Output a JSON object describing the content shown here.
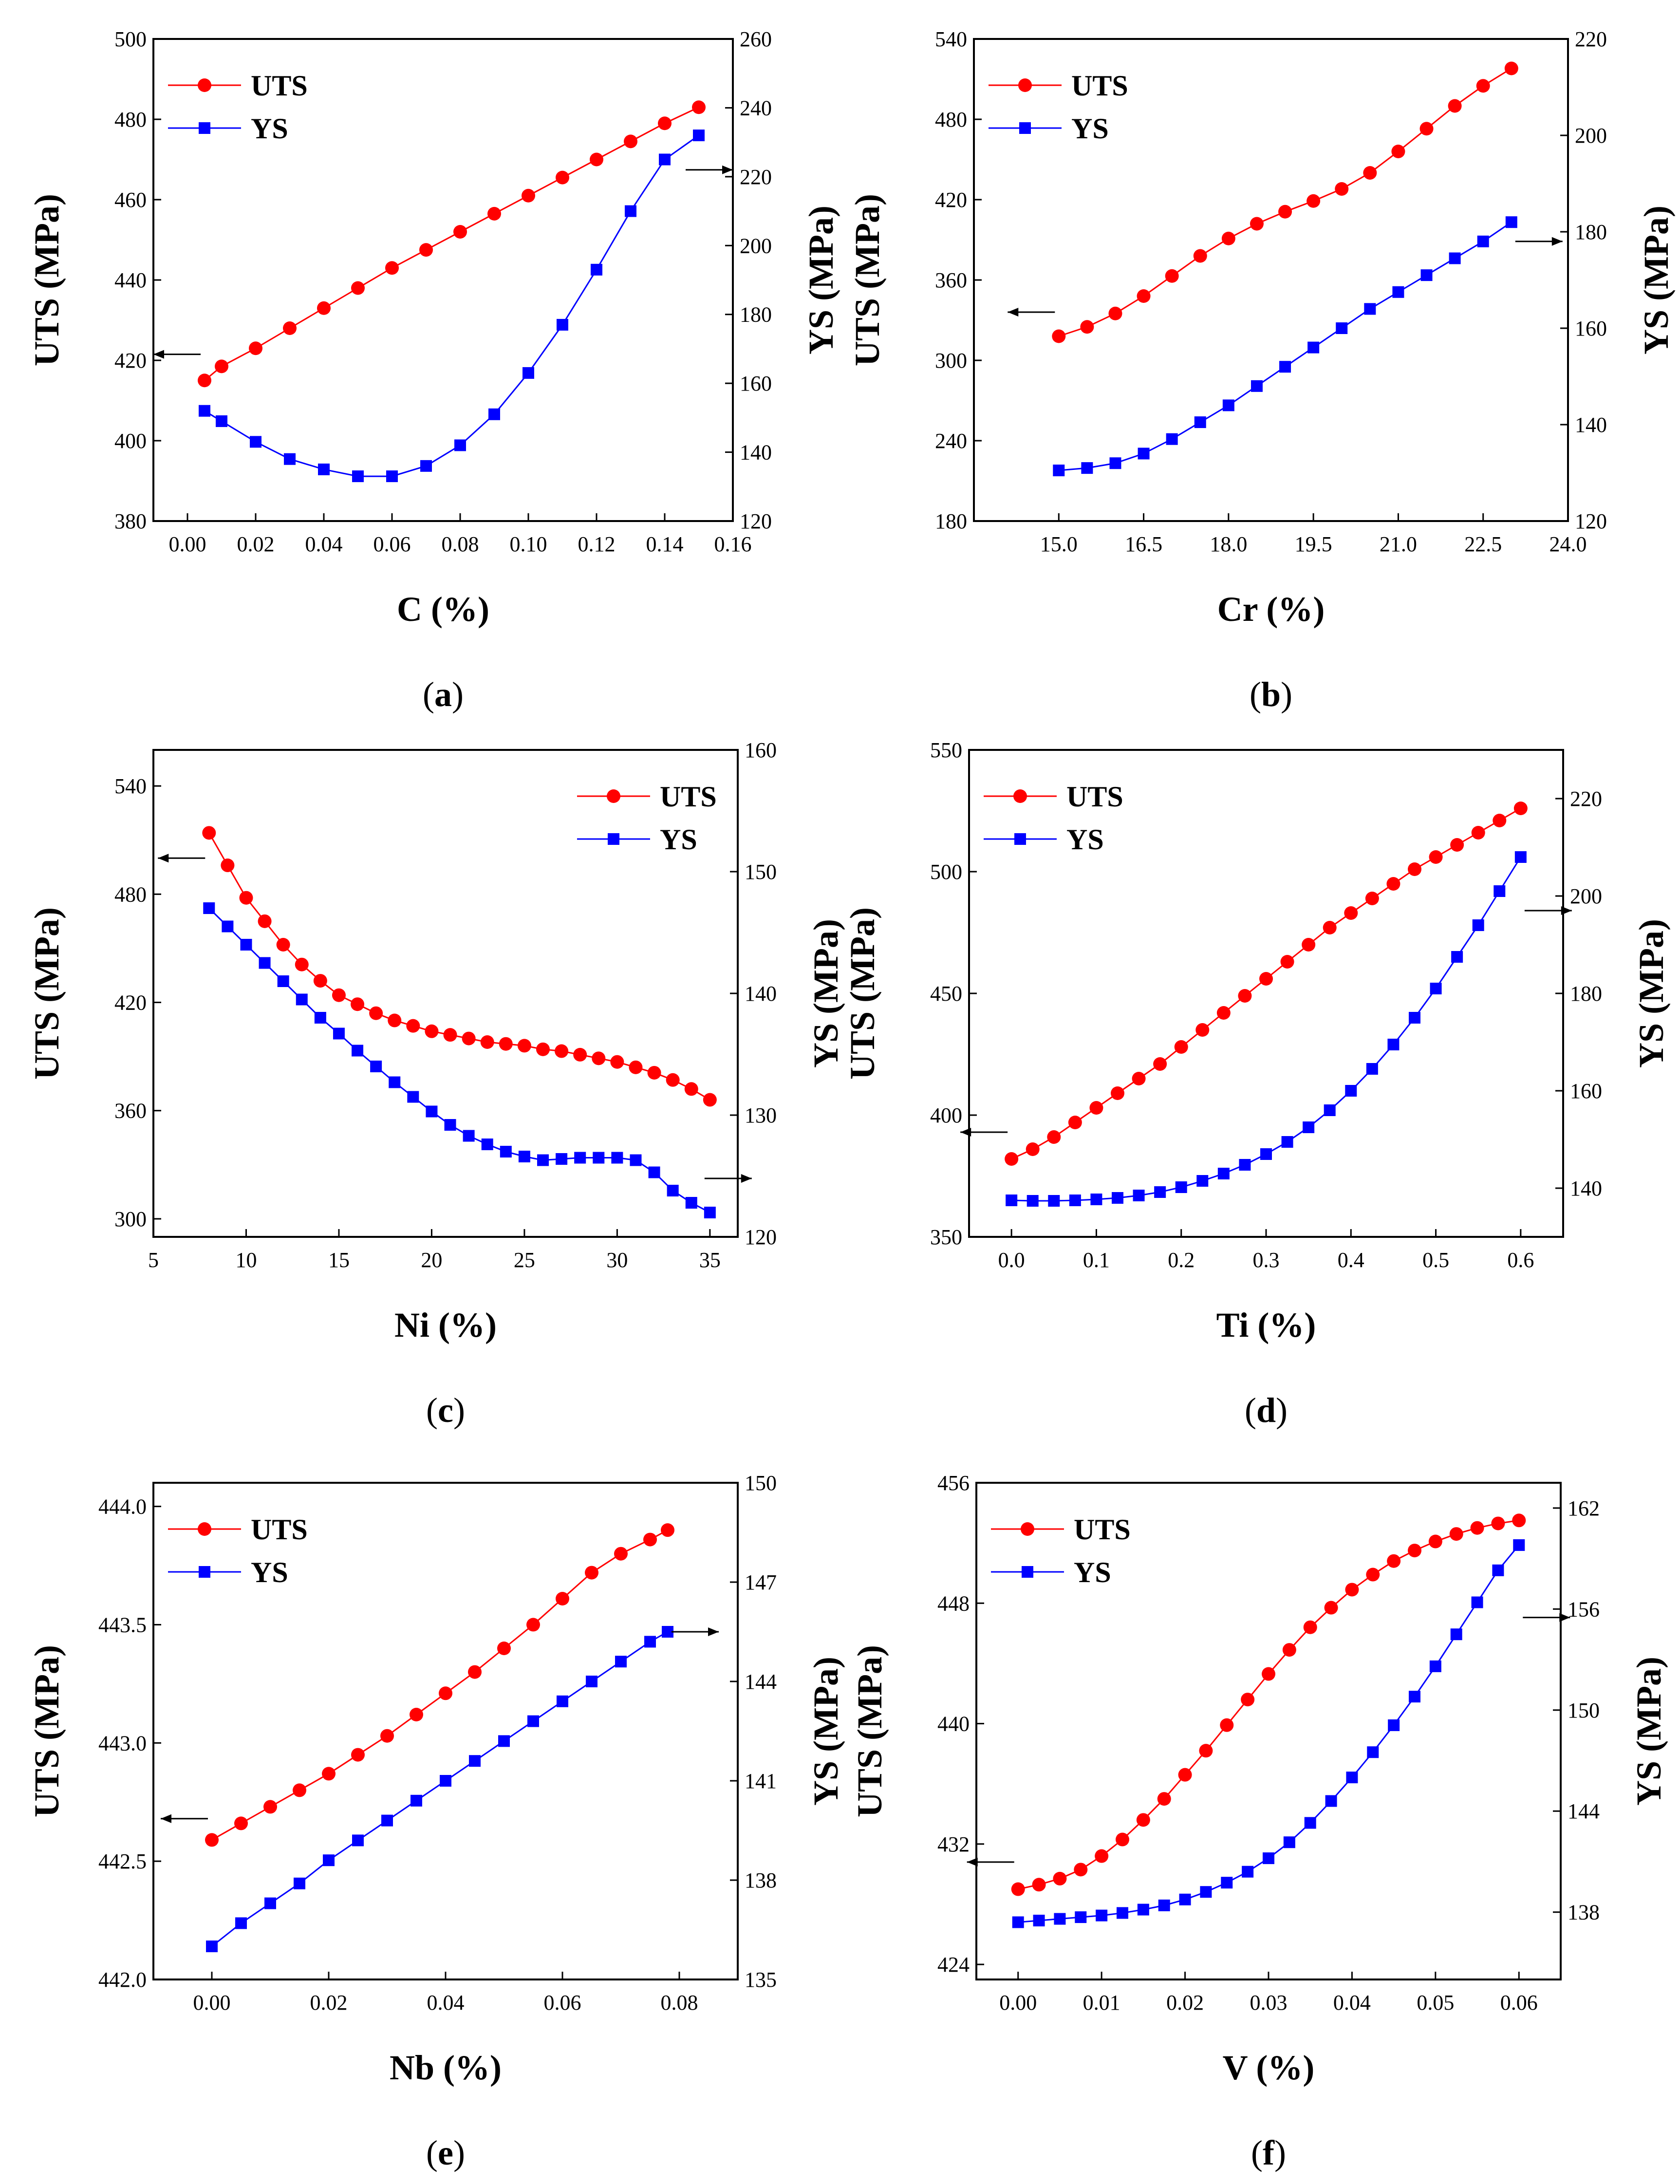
{
  "chart_data": [
    {
      "type": "line",
      "caption": "(a)",
      "caption_letter": "a",
      "xlabel": "C (%)",
      "ylabel_left": "UTS (MPa)",
      "ylabel_right": "YS (MPa)",
      "xlim": [
        -0.01,
        0.16
      ],
      "ylim_left": [
        380,
        500
      ],
      "ylim_right": [
        120,
        260
      ],
      "x_ticks": [
        "0.00",
        "0.02",
        "0.04",
        "0.06",
        "0.08",
        "0.10",
        "0.12",
        "0.14",
        "0.16"
      ],
      "y_left_ticks": [
        "380",
        "400",
        "420",
        "440",
        "460",
        "480",
        "500"
      ],
      "y_right_ticks": [
        "120",
        "140",
        "160",
        "180",
        "200",
        "220",
        "240",
        "260"
      ],
      "legend": [
        "UTS",
        "YS"
      ],
      "legend_position": "top-left",
      "arrows": [
        {
          "x": 0.005,
          "y": 421.5,
          "dir": "left",
          "axis": "left"
        },
        {
          "x": 0.145,
          "y": 222,
          "dir": "right",
          "axis": "right"
        }
      ],
      "series": [
        {
          "name": "UTS",
          "axis": "left",
          "marker": "circle",
          "color": "#ff0000",
          "x": [
            0.005,
            0.01,
            0.02,
            0.03,
            0.04,
            0.05,
            0.06,
            0.07,
            0.08,
            0.09,
            0.1,
            0.11,
            0.12,
            0.13,
            0.14,
            0.15
          ],
          "values": [
            415,
            418.5,
            423,
            428,
            433,
            438,
            443,
            447.5,
            452,
            456.5,
            461,
            465.5,
            470,
            474.5,
            479,
            483
          ]
        },
        {
          "name": "YS",
          "axis": "right",
          "marker": "square",
          "color": "#0000ff",
          "x": [
            0.005,
            0.01,
            0.02,
            0.03,
            0.04,
            0.05,
            0.06,
            0.07,
            0.08,
            0.09,
            0.1,
            0.11,
            0.12,
            0.13,
            0.14,
            0.15
          ],
          "values": [
            152,
            149,
            143,
            138,
            135,
            133,
            133,
            136,
            142,
            151,
            163,
            177,
            193,
            210,
            225,
            232
          ]
        }
      ]
    },
    {
      "type": "line",
      "caption": "(b)",
      "caption_letter": "b",
      "xlabel": "Cr (%)",
      "ylabel_left": "UTS (MPa)",
      "ylabel_right": "YS (MPa)",
      "xlim": [
        13.5,
        24.0
      ],
      "ylim_left": [
        180,
        540
      ],
      "ylim_right": [
        120,
        220
      ],
      "x_ticks": [
        "15.0",
        "16.5",
        "18.0",
        "19.5",
        "21.0",
        "22.5",
        "24.0"
      ],
      "y_left_ticks": [
        "180",
        "240",
        "300",
        "360",
        "420",
        "480",
        "540"
      ],
      "y_right_ticks": [
        "120",
        "140",
        "160",
        "180",
        "200",
        "220"
      ],
      "legend": [
        "UTS",
        "YS"
      ],
      "legend_position": "top-left",
      "arrows": [
        {
          "x": 15.0,
          "y": 336,
          "dir": "left",
          "axis": "left"
        },
        {
          "x": 23.0,
          "y": 178,
          "dir": "right",
          "axis": "right"
        }
      ],
      "series": [
        {
          "name": "UTS",
          "axis": "left",
          "marker": "circle",
          "color": "#ff0000",
          "x": [
            15.0,
            15.5,
            16.0,
            16.5,
            17.0,
            17.5,
            18.0,
            18.5,
            19.0,
            19.5,
            20.0,
            20.5,
            21.0,
            21.5,
            22.0,
            22.5,
            23.0
          ],
          "values": [
            318,
            325,
            335,
            348,
            363,
            378,
            391,
            402,
            411,
            419,
            428,
            440,
            456,
            473,
            490,
            505,
            518
          ]
        },
        {
          "name": "YS",
          "axis": "right",
          "marker": "square",
          "color": "#0000ff",
          "x": [
            15.0,
            15.5,
            16.0,
            16.5,
            17.0,
            17.5,
            18.0,
            18.5,
            19.0,
            19.5,
            20.0,
            20.5,
            21.0,
            21.5,
            22.0,
            22.5,
            23.0
          ],
          "values": [
            130.5,
            131,
            132,
            134,
            137,
            140.5,
            144,
            148,
            152,
            156,
            160,
            164,
            167.5,
            171,
            174.5,
            178,
            182
          ]
        }
      ]
    },
    {
      "type": "line",
      "caption": "(c)",
      "caption_letter": "c",
      "xlabel": "Ni (%)",
      "ylabel_left": "UTS (MPa)",
      "ylabel_right": "YS (MPa)",
      "xlim": [
        5,
        36.5
      ],
      "ylim_left": [
        290,
        560
      ],
      "ylim_right": [
        120,
        160
      ],
      "x_ticks": [
        "5",
        "10",
        "15",
        "20",
        "25",
        "30",
        "35"
      ],
      "y_left_ticks": [
        "300",
        "360",
        "420",
        "480",
        "540"
      ],
      "y_right_ticks": [
        "120",
        "130",
        "140",
        "150",
        "160"
      ],
      "legend": [
        "UTS",
        "YS"
      ],
      "legend_position": "top-right",
      "arrows": [
        {
          "x": 8,
          "y": 500,
          "dir": "left",
          "axis": "left"
        },
        {
          "x": 34.5,
          "y": 124.8,
          "dir": "right",
          "axis": "right"
        }
      ],
      "series": [
        {
          "name": "UTS",
          "axis": "left",
          "marker": "circle",
          "color": "#ff0000",
          "x": [
            8,
            9,
            10,
            11,
            12,
            13,
            14,
            15,
            16,
            17,
            18,
            19,
            20,
            21,
            22,
            23,
            24,
            25,
            26,
            27,
            28,
            29,
            30,
            31,
            32,
            33,
            34,
            35
          ],
          "values": [
            514,
            496,
            478,
            465,
            452,
            441,
            432,
            424,
            419,
            414,
            410,
            407,
            404,
            402,
            400,
            398,
            397,
            396,
            394,
            393,
            391,
            389,
            387,
            384,
            381,
            377,
            372,
            366
          ]
        },
        {
          "name": "YS",
          "axis": "right",
          "marker": "square",
          "color": "#0000ff",
          "x": [
            8,
            9,
            10,
            11,
            12,
            13,
            14,
            15,
            16,
            17,
            18,
            19,
            20,
            21,
            22,
            23,
            24,
            25,
            26,
            27,
            28,
            29,
            30,
            31,
            32,
            33,
            34,
            35
          ],
          "values": [
            147,
            145.5,
            144,
            142.5,
            141,
            139.5,
            138,
            136.7,
            135.3,
            134,
            132.7,
            131.5,
            130.3,
            129.2,
            128.3,
            127.6,
            127,
            126.6,
            126.3,
            126.4,
            126.5,
            126.5,
            126.5,
            126.3,
            125.3,
            123.8,
            122.8,
            122
          ]
        }
      ]
    },
    {
      "type": "line",
      "caption": "(d)",
      "caption_letter": "d",
      "xlabel": "Ti (%)",
      "ylabel_left": "UTS (MPa)",
      "ylabel_right": "YS (MPa)",
      "xlim": [
        -0.05,
        0.65
      ],
      "ylim_left": [
        350,
        550
      ],
      "ylim_right": [
        130,
        230
      ],
      "x_ticks": [
        "0.0",
        "0.1",
        "0.2",
        "0.3",
        "0.4",
        "0.5",
        "0.6"
      ],
      "y_left_ticks": [
        "350",
        "400",
        "450",
        "500",
        "550"
      ],
      "y_right_ticks": [
        "140",
        "160",
        "180",
        "200",
        "220"
      ],
      "legend": [
        "UTS",
        "YS"
      ],
      "legend_position": "top-left",
      "arrows": [
        {
          "x": 0.0,
          "y": 393,
          "dir": "left",
          "axis": "left"
        },
        {
          "x": 0.6,
          "y": 197,
          "dir": "right",
          "axis": "right"
        }
      ],
      "series": [
        {
          "name": "UTS",
          "axis": "left",
          "marker": "circle",
          "color": "#ff0000",
          "x": [
            0.0,
            0.025,
            0.05,
            0.075,
            0.1,
            0.125,
            0.15,
            0.175,
            0.2,
            0.225,
            0.25,
            0.275,
            0.3,
            0.325,
            0.35,
            0.375,
            0.4,
            0.425,
            0.45,
            0.475,
            0.5,
            0.525,
            0.55,
            0.575,
            0.6
          ],
          "values": [
            382,
            386,
            391,
            397,
            403,
            409,
            415,
            421,
            428,
            435,
            442,
            449,
            456,
            463,
            470,
            477,
            483,
            489,
            495,
            501,
            506,
            511,
            516,
            521,
            526
          ]
        },
        {
          "name": "YS",
          "axis": "right",
          "marker": "square",
          "color": "#0000ff",
          "x": [
            0.0,
            0.025,
            0.05,
            0.075,
            0.1,
            0.125,
            0.15,
            0.175,
            0.2,
            0.225,
            0.25,
            0.275,
            0.3,
            0.325,
            0.35,
            0.375,
            0.4,
            0.425,
            0.45,
            0.475,
            0.5,
            0.525,
            0.55,
            0.575,
            0.6
          ],
          "values": [
            137.5,
            137.4,
            137.4,
            137.5,
            137.7,
            138,
            138.5,
            139.2,
            140.2,
            141.5,
            143,
            144.8,
            147,
            149.5,
            152.5,
            156,
            160,
            164.5,
            169.5,
            175,
            181,
            187.5,
            194,
            201,
            208
          ]
        }
      ]
    },
    {
      "type": "line",
      "caption": "(e)",
      "caption_letter": "e",
      "xlabel": "Nb (%)",
      "ylabel_left": "UTS (MPa)",
      "ylabel_right": "YS (MPa)",
      "xlim": [
        -0.01,
        0.09
      ],
      "ylim_left": [
        442.0,
        444.1
      ],
      "ylim_right": [
        135,
        150
      ],
      "x_ticks": [
        "0.00",
        "0.02",
        "0.04",
        "0.06",
        "0.08"
      ],
      "y_left_ticks": [
        "442.0",
        "442.5",
        "443.0",
        "443.5",
        "444.0"
      ],
      "y_right_ticks": [
        "135",
        "138",
        "141",
        "144",
        "147",
        "150"
      ],
      "legend": [
        "UTS",
        "YS"
      ],
      "legend_position": "top-left",
      "arrows": [
        {
          "x": 0.0,
          "y": 442.68,
          "dir": "left",
          "axis": "left"
        },
        {
          "x": 0.078,
          "y": 145.5,
          "dir": "right",
          "axis": "right"
        }
      ],
      "series": [
        {
          "name": "UTS",
          "axis": "left",
          "marker": "circle",
          "color": "#ff0000",
          "x": [
            0.0,
            0.005,
            0.01,
            0.015,
            0.02,
            0.025,
            0.03,
            0.035,
            0.04,
            0.045,
            0.05,
            0.055,
            0.06,
            0.065,
            0.07,
            0.075,
            0.078
          ],
          "values": [
            442.59,
            442.66,
            442.73,
            442.8,
            442.87,
            442.95,
            443.03,
            443.12,
            443.21,
            443.3,
            443.4,
            443.5,
            443.61,
            443.72,
            443.8,
            443.86,
            443.9
          ]
        },
        {
          "name": "YS",
          "axis": "right",
          "marker": "square",
          "color": "#0000ff",
          "x": [
            0.0,
            0.005,
            0.01,
            0.015,
            0.02,
            0.025,
            0.03,
            0.035,
            0.04,
            0.045,
            0.05,
            0.055,
            0.06,
            0.065,
            0.07,
            0.075,
            0.078
          ],
          "values": [
            136.0,
            136.7,
            137.3,
            137.9,
            138.6,
            139.2,
            139.8,
            140.4,
            141.0,
            141.6,
            142.2,
            142.8,
            143.4,
            144.0,
            144.6,
            145.2,
            145.5
          ]
        }
      ]
    },
    {
      "type": "line",
      "caption": "(f)",
      "caption_letter": "f",
      "xlabel": "V (%)",
      "ylabel_left": "UTS (MPa)",
      "ylabel_right": "YS (MPa)",
      "xlim": [
        -0.005,
        0.065
      ],
      "ylim_left": [
        423,
        456
      ],
      "ylim_right": [
        134,
        163.5
      ],
      "x_ticks": [
        "0.00",
        "0.01",
        "0.02",
        "0.03",
        "0.04",
        "0.05",
        "0.06"
      ],
      "y_left_ticks": [
        "424",
        "432",
        "440",
        "448",
        "456"
      ],
      "y_right_ticks": [
        "138",
        "144",
        "150",
        "156",
        "162"
      ],
      "legend": [
        "UTS",
        "YS"
      ],
      "legend_position": "top-left",
      "arrows": [
        {
          "x": 0.0,
          "y": 430.8,
          "dir": "left",
          "axis": "left"
        },
        {
          "x": 0.06,
          "y": 155.5,
          "dir": "right",
          "axis": "right"
        }
      ],
      "series": [
        {
          "name": "UTS",
          "axis": "left",
          "marker": "circle",
          "color": "#ff0000",
          "x": [
            0.0,
            0.0025,
            0.005,
            0.0075,
            0.01,
            0.0125,
            0.015,
            0.0175,
            0.02,
            0.0225,
            0.025,
            0.0275,
            0.03,
            0.0325,
            0.035,
            0.0375,
            0.04,
            0.0425,
            0.045,
            0.0475,
            0.05,
            0.0525,
            0.055,
            0.0575,
            0.06
          ],
          "values": [
            429.0,
            429.3,
            429.7,
            430.3,
            431.2,
            432.3,
            433.6,
            435.0,
            436.6,
            438.2,
            439.9,
            441.6,
            443.3,
            444.9,
            446.4,
            447.7,
            448.9,
            449.9,
            450.8,
            451.5,
            452.1,
            452.6,
            453.0,
            453.3,
            453.5
          ]
        },
        {
          "name": "YS",
          "axis": "right",
          "marker": "square",
          "color": "#0000ff",
          "x": [
            0.0,
            0.0025,
            0.005,
            0.0075,
            0.01,
            0.0125,
            0.015,
            0.0175,
            0.02,
            0.0225,
            0.025,
            0.0275,
            0.03,
            0.0325,
            0.035,
            0.0375,
            0.04,
            0.0425,
            0.045,
            0.0475,
            0.05,
            0.0525,
            0.055,
            0.0575,
            0.06
          ],
          "values": [
            137.4,
            137.5,
            137.6,
            137.7,
            137.8,
            137.95,
            138.15,
            138.4,
            138.75,
            139.2,
            139.75,
            140.4,
            141.2,
            142.15,
            143.3,
            144.6,
            146.0,
            147.5,
            149.1,
            150.8,
            152.6,
            154.5,
            156.4,
            158.3,
            159.8
          ]
        }
      ]
    }
  ]
}
